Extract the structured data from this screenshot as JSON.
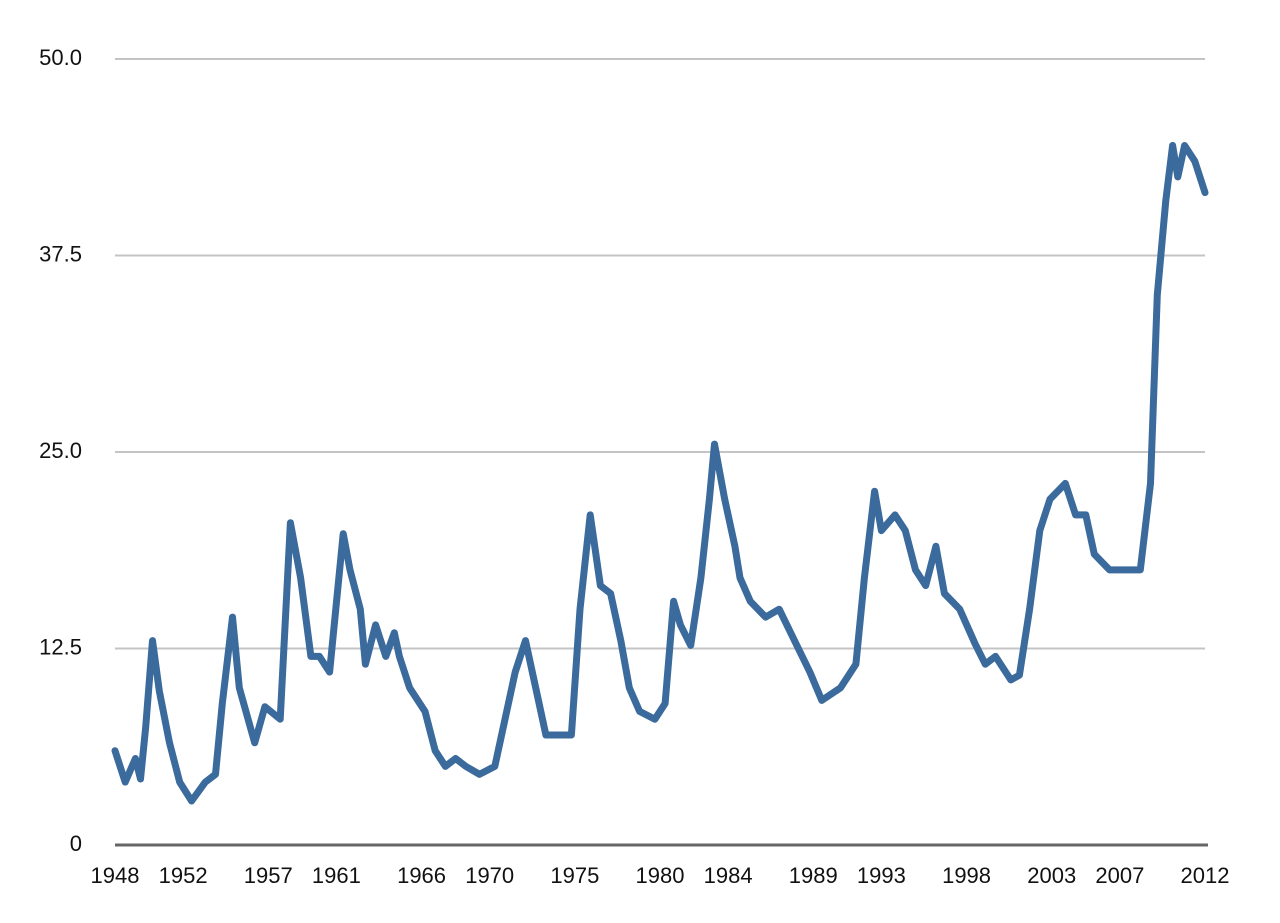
{
  "chart_data": {
    "type": "line",
    "x": [
      1948.0,
      1948.6,
      1949.2,
      1949.5,
      1949.8,
      1950.2,
      1950.6,
      1951.2,
      1951.8,
      1952.5,
      1953.3,
      1953.9,
      1954.3,
      1954.9,
      1955.3,
      1956.2,
      1956.8,
      1957.7,
      1958.3,
      1958.9,
      1959.5,
      1960.0,
      1960.6,
      1961.4,
      1961.8,
      1962.4,
      1962.7,
      1963.3,
      1963.9,
      1964.4,
      1964.7,
      1965.3,
      1966.2,
      1966.8,
      1967.4,
      1968.0,
      1968.6,
      1969.4,
      1970.3,
      1970.9,
      1971.5,
      1972.1,
      1972.7,
      1973.3,
      1974.1,
      1974.8,
      1975.3,
      1975.9,
      1976.5,
      1977.1,
      1977.7,
      1978.2,
      1978.8,
      1979.7,
      1980.3,
      1980.8,
      1981.2,
      1981.8,
      1982.4,
      1982.9,
      1983.2,
      1983.8,
      1984.4,
      1984.7,
      1985.3,
      1986.2,
      1987.0,
      1987.9,
      1988.8,
      1989.5,
      1990.6,
      1991.5,
      1992.0,
      1992.6,
      1993.0,
      1993.8,
      1994.4,
      1995.0,
      1995.6,
      1996.2,
      1996.7,
      1997.6,
      1998.5,
      1999.1,
      1999.7,
      2000.6,
      2001.1,
      2001.7,
      2002.3,
      2002.9,
      2003.8,
      2004.4,
      2005.0,
      2005.5,
      2006.4,
      2007.3,
      2008.2,
      2008.8,
      2009.2,
      2009.7,
      2010.1,
      2010.4,
      2010.8,
      2011.4,
      2012.0
    ],
    "series": [
      {
        "color": "#3b6a9c",
        "values": [
          6.0,
          4.0,
          5.5,
          4.2,
          7.5,
          13.0,
          9.8,
          6.5,
          4.0,
          2.8,
          4.0,
          4.5,
          9.0,
          14.5,
          10.0,
          6.5,
          8.8,
          8.0,
          20.5,
          17.0,
          12.0,
          12.0,
          11.0,
          19.8,
          17.5,
          15.0,
          11.5,
          14.0,
          12.0,
          13.5,
          12.0,
          10.0,
          8.5,
          6.0,
          5.0,
          5.5,
          5.0,
          4.5,
          5.0,
          8.0,
          11.0,
          13.0,
          10.0,
          7.0,
          7.0,
          7.0,
          15.0,
          21.0,
          16.5,
          16.0,
          13.0,
          10.0,
          8.5,
          8.0,
          9.0,
          15.5,
          14.0,
          12.7,
          17.0,
          22.0,
          25.5,
          22.0,
          19.0,
          17.0,
          15.5,
          14.5,
          15.0,
          13.0,
          11.0,
          9.2,
          10.0,
          11.5,
          17.0,
          22.5,
          20.0,
          21.0,
          20.0,
          17.5,
          16.5,
          19.0,
          16.0,
          15.0,
          12.8,
          11.5,
          12.0,
          10.5,
          10.8,
          15.0,
          20.0,
          22.0,
          23.0,
          21.0,
          21.0,
          18.5,
          17.5,
          17.5,
          17.5,
          23.0,
          35.0,
          41.0,
          44.5,
          42.5,
          44.5,
          43.5,
          41.5
        ]
      }
    ],
    "xlim": [
      1948,
      2012
    ],
    "xticks": [
      1948,
      1952,
      1957,
      1961,
      1966,
      1970,
      1975,
      1980,
      1984,
      1989,
      1993,
      1998,
      2003,
      2007,
      2012
    ],
    "ylim": [
      0,
      50
    ],
    "yticks": [
      0,
      12.5,
      {
        "value": 25,
        "label": "25.0"
      },
      37.5,
      {
        "value": 50,
        "label": "50.0"
      }
    ],
    "grid": true
  }
}
